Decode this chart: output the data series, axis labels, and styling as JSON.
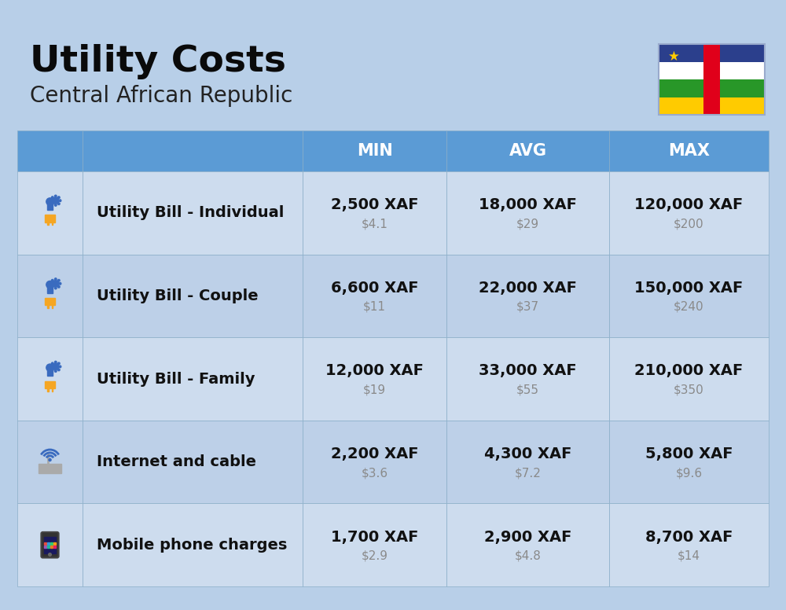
{
  "title": "Utility Costs",
  "subtitle": "Central African Republic",
  "background_color": "#b8cfe8",
  "header_bg_color": "#5b9bd5",
  "header_text_color": "#ffffff",
  "row_bg_color_1": "#cddcee",
  "row_bg_color_2": "#bdd0e8",
  "divider_color": "#8aaec8",
  "columns": [
    "MIN",
    "AVG",
    "MAX"
  ],
  "rows": [
    {
      "label": "Utility Bill - Individual",
      "min_xaf": "2,500 XAF",
      "min_usd": "$4.1",
      "avg_xaf": "18,000 XAF",
      "avg_usd": "$29",
      "max_xaf": "120,000 XAF",
      "max_usd": "$200"
    },
    {
      "label": "Utility Bill - Couple",
      "min_xaf": "6,600 XAF",
      "min_usd": "$11",
      "avg_xaf": "22,000 XAF",
      "avg_usd": "$37",
      "max_xaf": "150,000 XAF",
      "max_usd": "$240"
    },
    {
      "label": "Utility Bill - Family",
      "min_xaf": "12,000 XAF",
      "min_usd": "$19",
      "avg_xaf": "33,000 XAF",
      "avg_usd": "$55",
      "max_xaf": "210,000 XAF",
      "max_usd": "$350"
    },
    {
      "label": "Internet and cable",
      "min_xaf": "2,200 XAF",
      "min_usd": "$3.6",
      "avg_xaf": "4,300 XAF",
      "avg_usd": "$7.2",
      "max_xaf": "5,800 XAF",
      "max_usd": "$9.6"
    },
    {
      "label": "Mobile phone charges",
      "min_xaf": "1,700 XAF",
      "min_usd": "$2.9",
      "avg_xaf": "2,900 XAF",
      "avg_usd": "$4.8",
      "max_xaf": "8,700 XAF",
      "max_usd": "$14"
    }
  ],
  "title_fontsize": 34,
  "subtitle_fontsize": 20,
  "header_fontsize": 15,
  "label_fontsize": 14,
  "value_fontsize": 14,
  "usd_fontsize": 11,
  "usd_color": "#8a8a8a",
  "label_color": "#111111",
  "value_color": "#111111",
  "flag_blue": "#2B3F8C",
  "flag_white": "#FFFFFF",
  "flag_green": "#289728",
  "flag_yellow": "#FFCB00",
  "flag_red": "#E0001A",
  "flag_star": "#FFCB00"
}
